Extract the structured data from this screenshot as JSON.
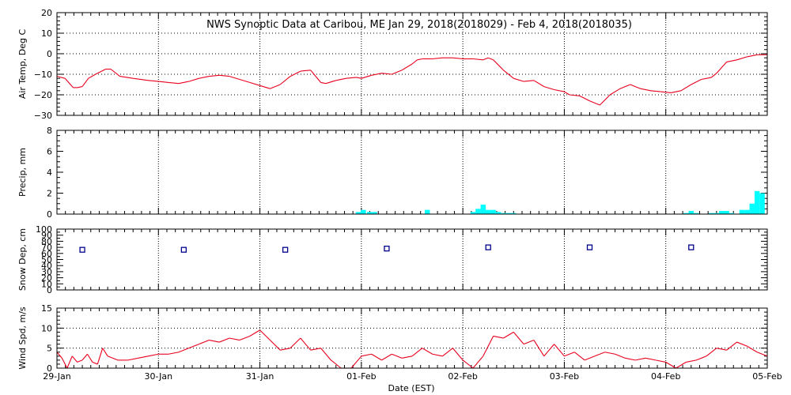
{
  "title": "NWS Synoptic Data at Caribou, ME   Jan 29, 2018(2018029) - Feb  4, 2018(2018035)",
  "x_axis": {
    "label": "Date (EST)",
    "range_days": [
      0,
      7
    ],
    "ticks": [
      {
        "day": 0,
        "label": "29-Jan"
      },
      {
        "day": 1,
        "label": "30-Jan"
      },
      {
        "day": 2,
        "label": "31-Jan"
      },
      {
        "day": 3,
        "label": "01-Feb"
      },
      {
        "day": 4,
        "label": "02-Feb"
      },
      {
        "day": 5,
        "label": "03-Feb"
      },
      {
        "day": 6,
        "label": "04-Feb"
      },
      {
        "day": 7,
        "label": "05-Feb"
      }
    ]
  },
  "colors": {
    "temp": "#e8001c",
    "wind": "#e8001c",
    "precip": "#00ffff",
    "snow": "#00008b",
    "axis": "#000000",
    "grid": "#000000"
  },
  "chart_data": [
    {
      "type": "line",
      "ylabel": "Air Temp, Deg C",
      "ylim": [
        -30,
        20
      ],
      "yticks": [
        20,
        10,
        0,
        -10,
        -20,
        -30
      ],
      "tick_labels": [
        "20",
        "10",
        "0",
        "−10",
        "−20",
        "−30"
      ],
      "series": [
        {
          "name": "Air Temp",
          "x": [
            0,
            0.08,
            0.16,
            0.2,
            0.25,
            0.31,
            0.38,
            0.44,
            0.48,
            0.53,
            0.62,
            0.75,
            0.9,
            1.0,
            1.1,
            1.2,
            1.3,
            1.4,
            1.5,
            1.6,
            1.7,
            1.8,
            1.9,
            2.0,
            2.1,
            2.2,
            2.3,
            2.4,
            2.5,
            2.55,
            2.6,
            2.65,
            2.75,
            2.85,
            2.95,
            3.0,
            3.1,
            3.2,
            3.3,
            3.4,
            3.5,
            3.55,
            3.6,
            3.7,
            3.8,
            3.9,
            4.0,
            4.1,
            4.2,
            4.25,
            4.3,
            4.4,
            4.5,
            4.6,
            4.7,
            4.8,
            4.9,
            5.0,
            5.05,
            5.15,
            5.25,
            5.35,
            5.45,
            5.55,
            5.65,
            5.75,
            5.85,
            5.95,
            6.05,
            6.15,
            6.25,
            6.35,
            6.45,
            6.5,
            6.6,
            6.7,
            6.8,
            6.9,
            7.0
          ],
          "values": [
            -11,
            -12,
            -16.5,
            -16.5,
            -16,
            -12,
            -10,
            -8.5,
            -7.5,
            -7.5,
            -11,
            -12,
            -13,
            -13.5,
            -14,
            -14.5,
            -13.5,
            -12,
            -11,
            -10.5,
            -11,
            -12.5,
            -14,
            -15.5,
            -17,
            -15,
            -11,
            -8.5,
            -8,
            -11,
            -14,
            -14.5,
            -13,
            -12,
            -11.5,
            -12,
            -10.5,
            -9.5,
            -10,
            -8,
            -5,
            -3,
            -2.5,
            -2.5,
            -2,
            -2,
            -2.5,
            -2.5,
            -3,
            -2,
            -3,
            -8,
            -12,
            -13.5,
            -13,
            -16,
            -17.5,
            -18.5,
            -20,
            -20.5,
            -23,
            -25,
            -20,
            -17,
            -15,
            -17,
            -18,
            -18.5,
            -19,
            -18,
            -15,
            -12.5,
            -11.5,
            -9.5,
            -4,
            -3,
            -1.5,
            -0.5,
            -0.5
          ]
        }
      ]
    },
    {
      "type": "bar",
      "ylabel": "Precip, mm",
      "ylim": [
        0,
        8
      ],
      "yticks": [
        8,
        6,
        4,
        2,
        0
      ],
      "tick_labels": [
        "8",
        "6",
        "4",
        "2",
        "0"
      ],
      "series": [
        {
          "name": "Precip",
          "x": [
            2.97,
            3.02,
            3.08,
            3.13,
            3.65,
            4.1,
            4.15,
            4.2,
            4.25,
            4.3,
            4.35,
            4.4,
            4.45,
            4.5,
            6.2,
            6.25,
            6.3,
            6.45,
            6.5,
            6.55,
            6.6,
            6.65,
            6.75,
            6.8,
            6.85,
            6.9,
            6.95
          ],
          "values": [
            0.2,
            0.4,
            0.2,
            0.2,
            0.4,
            0.2,
            0.5,
            0.9,
            0.4,
            0.4,
            0.2,
            0.1,
            0.1,
            0.1,
            0.1,
            0.3,
            0.1,
            0.1,
            0.1,
            0.3,
            0.3,
            0.1,
            0.4,
            0.4,
            1.0,
            2.2,
            2.0
          ]
        }
      ]
    },
    {
      "type": "scatter",
      "ylabel": "Snow Dep, cm",
      "ylim": [
        0,
        100
      ],
      "yticks": [
        100,
        90,
        80,
        70,
        60,
        50,
        40,
        30,
        20,
        10,
        0
      ],
      "tick_labels": [
        "100",
        "90",
        "80",
        "70",
        "60",
        "50",
        "40",
        "30",
        "20",
        "10",
        "0"
      ],
      "series": [
        {
          "name": "Snow Depth",
          "x": [
            0.25,
            1.25,
            2.25,
            3.25,
            4.25,
            5.25,
            6.25
          ],
          "values": [
            66,
            66,
            66,
            68,
            70,
            70,
            70
          ]
        }
      ]
    },
    {
      "type": "line",
      "ylabel": "Wind Spd, m/s",
      "xlabel": "Date (EST)",
      "ylim": [
        0,
        15
      ],
      "yticks": [
        15,
        10,
        5,
        0
      ],
      "tick_labels": [
        "15",
        "10",
        "5",
        "0"
      ],
      "series": [
        {
          "name": "Wind Speed",
          "x": [
            0,
            0.05,
            0.1,
            0.15,
            0.2,
            0.25,
            0.3,
            0.35,
            0.4,
            0.45,
            0.5,
            0.6,
            0.7,
            0.8,
            0.9,
            1.0,
            1.1,
            1.2,
            1.3,
            1.4,
            1.5,
            1.6,
            1.7,
            1.8,
            1.9,
            2.0,
            2.1,
            2.2,
            2.3,
            2.4,
            2.5,
            2.6,
            2.7,
            2.8,
            2.9,
            3.0,
            3.1,
            3.2,
            3.3,
            3.4,
            3.5,
            3.6,
            3.7,
            3.8,
            3.9,
            4.0,
            4.1,
            4.2,
            4.3,
            4.4,
            4.5,
            4.6,
            4.7,
            4.8,
            4.9,
            5.0,
            5.1,
            5.2,
            5.3,
            5.4,
            5.5,
            5.6,
            5.7,
            5.8,
            5.9,
            6.0,
            6.1,
            6.2,
            6.3,
            6.4,
            6.5,
            6.6,
            6.7,
            6.8,
            6.9,
            7.0
          ],
          "values": [
            4,
            2.5,
            0,
            3,
            1.5,
            2,
            3.5,
            1.5,
            1,
            5,
            3,
            2,
            2,
            2.5,
            3,
            3.5,
            3.5,
            4,
            5,
            6,
            7,
            6.5,
            7.5,
            7,
            8,
            9.5,
            7,
            4.5,
            5,
            7.5,
            4.5,
            5,
            2,
            0,
            0,
            3,
            3.5,
            2,
            3.5,
            2.5,
            3,
            5,
            3.5,
            3,
            5,
            2,
            0,
            3,
            8,
            7.5,
            9,
            6,
            7,
            3,
            6,
            3,
            4,
            2,
            3,
            4,
            3.5,
            2.5,
            2,
            2.5,
            2,
            1.5,
            0,
            1.5,
            2,
            3,
            5,
            4.5,
            6.5,
            5.5,
            4,
            3
          ]
        }
      ]
    }
  ]
}
